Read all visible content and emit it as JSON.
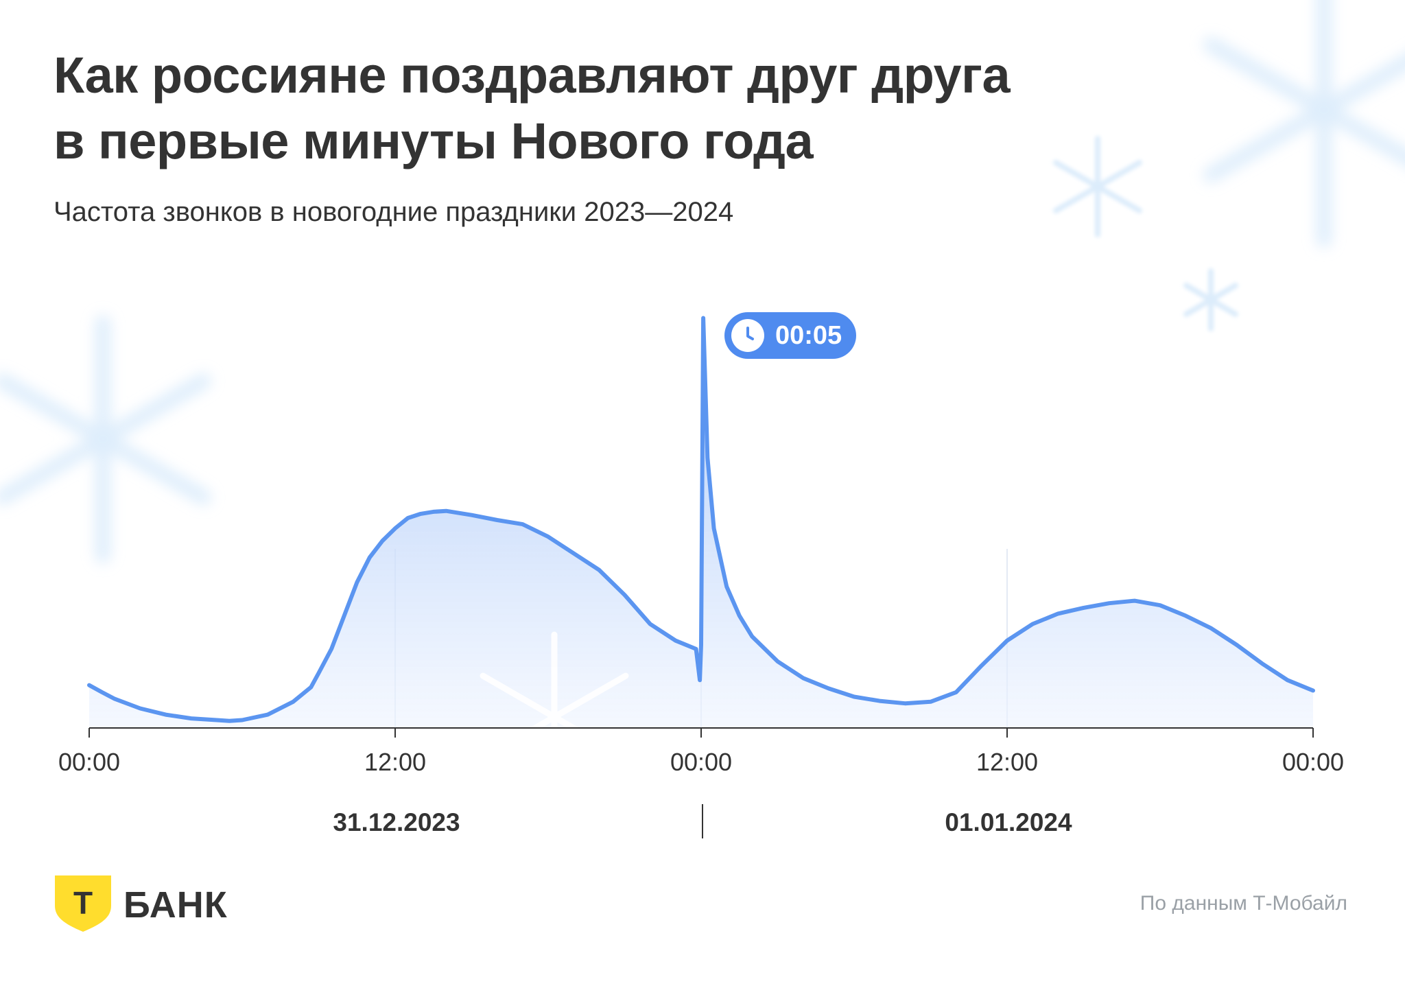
{
  "title_lines": [
    "Как россияне поздравляют друг друга",
    "в первые минуты Нового года"
  ],
  "subtitle": "Частота звонков в новогодние праздники 2023—2024",
  "badge": {
    "label": "00:05",
    "icon": "clock-icon"
  },
  "dates": [
    "31.12.2023",
    "01.01.2024"
  ],
  "source": "По данным Т-Мобайл",
  "logo": {
    "letter": "Т",
    "name": "БАНК"
  },
  "colors": {
    "line": "#5b95f0",
    "badge": "#4f8bef",
    "fill_top": "#9dbff7",
    "fill_bottom": "#eef4ff",
    "text": "#333333",
    "logo_shield": "#ffdd2d",
    "snowflake": "#d6e9fb"
  },
  "chart_data": {
    "type": "area",
    "title": "Как россияне поздравляют друг друга в первые минуты Нового года",
    "subtitle": "Частота звонков в новогодние праздники 2023—2024",
    "xlabel": "",
    "ylabel": "",
    "x_unit": "hours since 31.12.2023 00:00",
    "x_ticks": [
      {
        "x": 0,
        "label": "00:00"
      },
      {
        "x": 12,
        "label": "12:00"
      },
      {
        "x": 24,
        "label": "00:00"
      },
      {
        "x": 36,
        "label": "12:00"
      },
      {
        "x": 48,
        "label": "00:00"
      }
    ],
    "y_scale": "relative call frequency, 0–100 (no axis shown)",
    "ylim": [
      0,
      100
    ],
    "grid": false,
    "legend": "none",
    "annotation": {
      "x": 24.083,
      "label": "00:05"
    },
    "series": [
      {
        "name": "",
        "points": [
          [
            0,
            10.3
          ],
          [
            0.5,
            8.6
          ],
          [
            1,
            7.0
          ],
          [
            2,
            4.7
          ],
          [
            3,
            3.2
          ],
          [
            4,
            2.3
          ],
          [
            5,
            1.9
          ],
          [
            5.5,
            1.7
          ],
          [
            6,
            1.9
          ],
          [
            7,
            3.2
          ],
          [
            8,
            6.3
          ],
          [
            8.7,
            9.8
          ],
          [
            9,
            13.2
          ],
          [
            9.5,
            19.0
          ],
          [
            10,
            27.0
          ],
          [
            10.5,
            35.0
          ],
          [
            11,
            41.0
          ],
          [
            11.5,
            45.0
          ],
          [
            12,
            48.0
          ],
          [
            12.5,
            50.5
          ],
          [
            13,
            51.5
          ],
          [
            13.5,
            52.0
          ],
          [
            14,
            52.2
          ],
          [
            15,
            51.2
          ],
          [
            16,
            50.0
          ],
          [
            17,
            49.0
          ],
          [
            18,
            46.0
          ],
          [
            19,
            42.0
          ],
          [
            20,
            38.0
          ],
          [
            21,
            32.0
          ],
          [
            22,
            25.0
          ],
          [
            23,
            21.0
          ],
          [
            23.8,
            19.0
          ],
          [
            23.95,
            11.5
          ],
          [
            24,
            20.0
          ],
          [
            24.083,
            98.6
          ],
          [
            24.25,
            65.0
          ],
          [
            24.5,
            48.0
          ],
          [
            25,
            34.0
          ],
          [
            25.5,
            27.0
          ],
          [
            26,
            22.0
          ],
          [
            27,
            16.0
          ],
          [
            28,
            12.0
          ],
          [
            29,
            9.5
          ],
          [
            30,
            7.5
          ],
          [
            31,
            6.5
          ],
          [
            32,
            5.9
          ],
          [
            33,
            6.3
          ],
          [
            34,
            8.6
          ],
          [
            35,
            15.0
          ],
          [
            36,
            21.0
          ],
          [
            37,
            25.0
          ],
          [
            38,
            27.5
          ],
          [
            39,
            28.9
          ],
          [
            40,
            30.0
          ],
          [
            41,
            30.6
          ],
          [
            42,
            29.5
          ],
          [
            43,
            27.0
          ],
          [
            44,
            24.0
          ],
          [
            45,
            20.0
          ],
          [
            46,
            15.5
          ],
          [
            47,
            11.5
          ],
          [
            48,
            9.0
          ]
        ]
      }
    ]
  }
}
